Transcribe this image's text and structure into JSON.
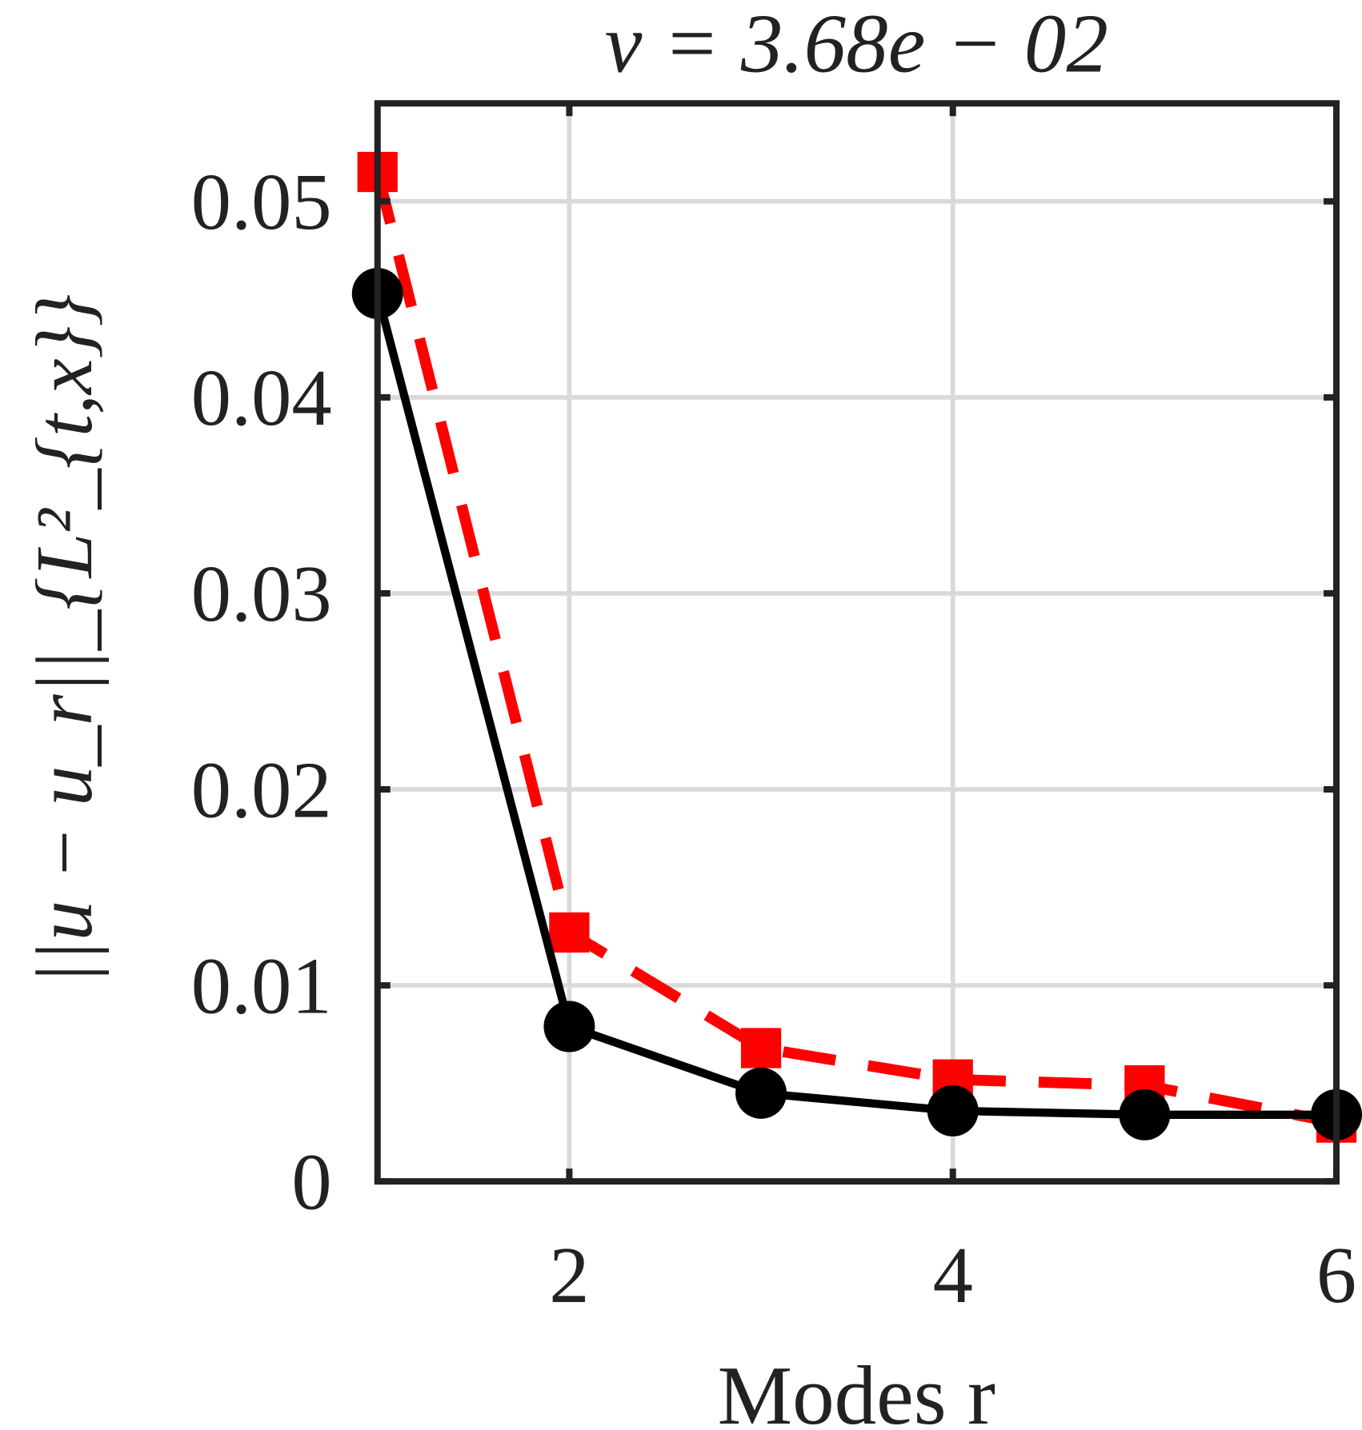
{
  "chart_data": {
    "type": "line",
    "title": "ν = 3.68e − 02",
    "xlabel": "Modes r",
    "ylabel": "||u − u_r||_{L²_{t,x}}",
    "xlim": [
      1,
      6
    ],
    "ylim": [
      0,
      0.055
    ],
    "xticks": [
      2,
      4,
      6
    ],
    "xtick_labels": [
      "2",
      "4",
      "6"
    ],
    "yticks": [
      0,
      0.01,
      0.02,
      0.03,
      0.04,
      0.05
    ],
    "ytick_labels": [
      "0",
      "0.01",
      "0.02",
      "0.03",
      "0.04",
      "0.05"
    ],
    "grid": true,
    "x": [
      1,
      2,
      3,
      4,
      5,
      6
    ],
    "series": [
      {
        "values": [
          0.0453,
          0.0079,
          0.0045,
          0.0036,
          0.0034,
          0.0034
        ],
        "color": "#000000",
        "style": "solid",
        "marker": "circle"
      },
      {
        "values": [
          0.0515,
          0.0127,
          0.0068,
          0.0052,
          0.0049,
          0.003
        ],
        "color": "#ff0000",
        "style": "dashed",
        "marker": "square"
      }
    ]
  }
}
